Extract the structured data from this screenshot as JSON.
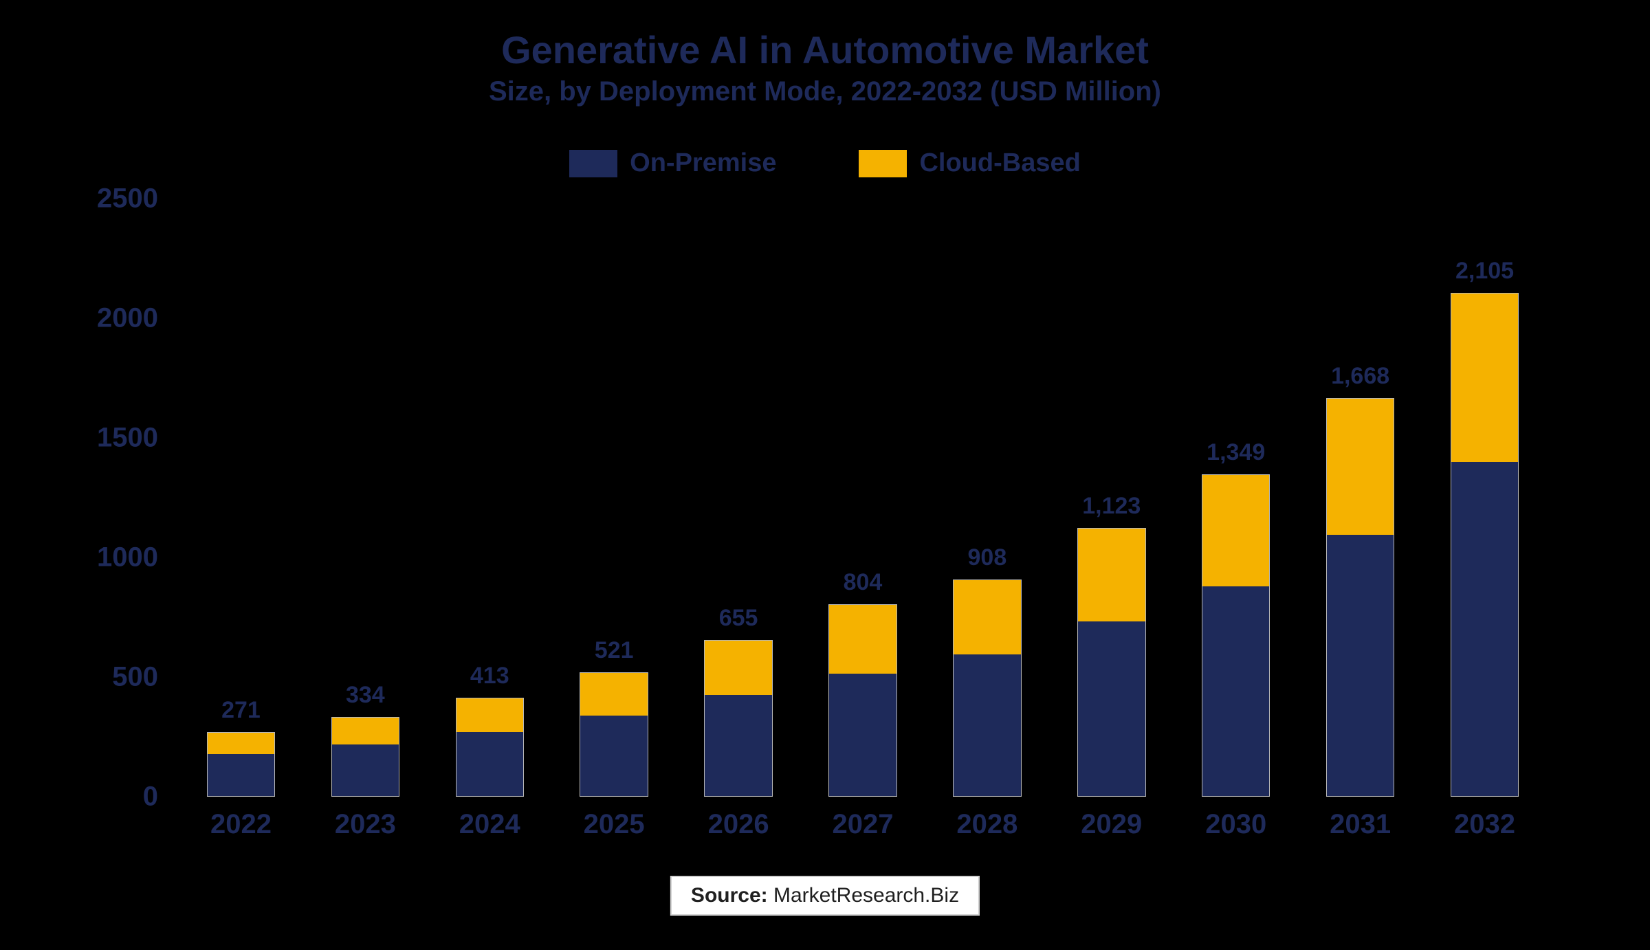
{
  "chart": {
    "type": "stacked-bar",
    "title": "Generative AI in Automotive Market",
    "subtitle": "Size, by Deployment Mode, 2022-2032 (USD Million)",
    "title_fontsize": 56,
    "subtitle_fontsize": 40,
    "title_color": "#1e2a5a",
    "background_color": "#000000",
    "legend": {
      "items": [
        {
          "label": "On-Premise",
          "color": "#1e2a5a"
        },
        {
          "label": "Cloud-Based",
          "color": "#f5b200"
        }
      ],
      "fontsize": 38
    },
    "y_axis": {
      "ticks": [
        0,
        500,
        1000,
        1500,
        2000,
        2500
      ],
      "min": 0,
      "max": 2500,
      "fontsize": 40
    },
    "x_axis": {
      "categories": [
        "2022",
        "2023",
        "2024",
        "2025",
        "2026",
        "2027",
        "2028",
        "2029",
        "2030",
        "2031",
        "2032"
      ],
      "fontsize": 40
    },
    "bar_style": {
      "width_ratio": 0.55,
      "border_color": "#b8b8b8",
      "label_fontsize": 34
    },
    "series": [
      {
        "name": "On-Premise",
        "color": "#1e2a5a",
        "values": [
          178,
          220,
          272,
          340,
          425,
          515,
          595,
          735,
          880,
          1095,
          1400
        ]
      },
      {
        "name": "Cloud-Based",
        "color": "#f5b200",
        "values": [
          93,
          114,
          141,
          181,
          230,
          289,
          313,
          388,
          469,
          573,
          705
        ]
      }
    ],
    "totals": [
      "271",
      "334",
      "413",
      "521",
      "655",
      "804",
      "908",
      "1,123",
      "1,349",
      "1,668",
      "2,105"
    ],
    "source": {
      "label": "Source:",
      "text": "MarketResearch.Biz",
      "fontsize": 30
    }
  }
}
